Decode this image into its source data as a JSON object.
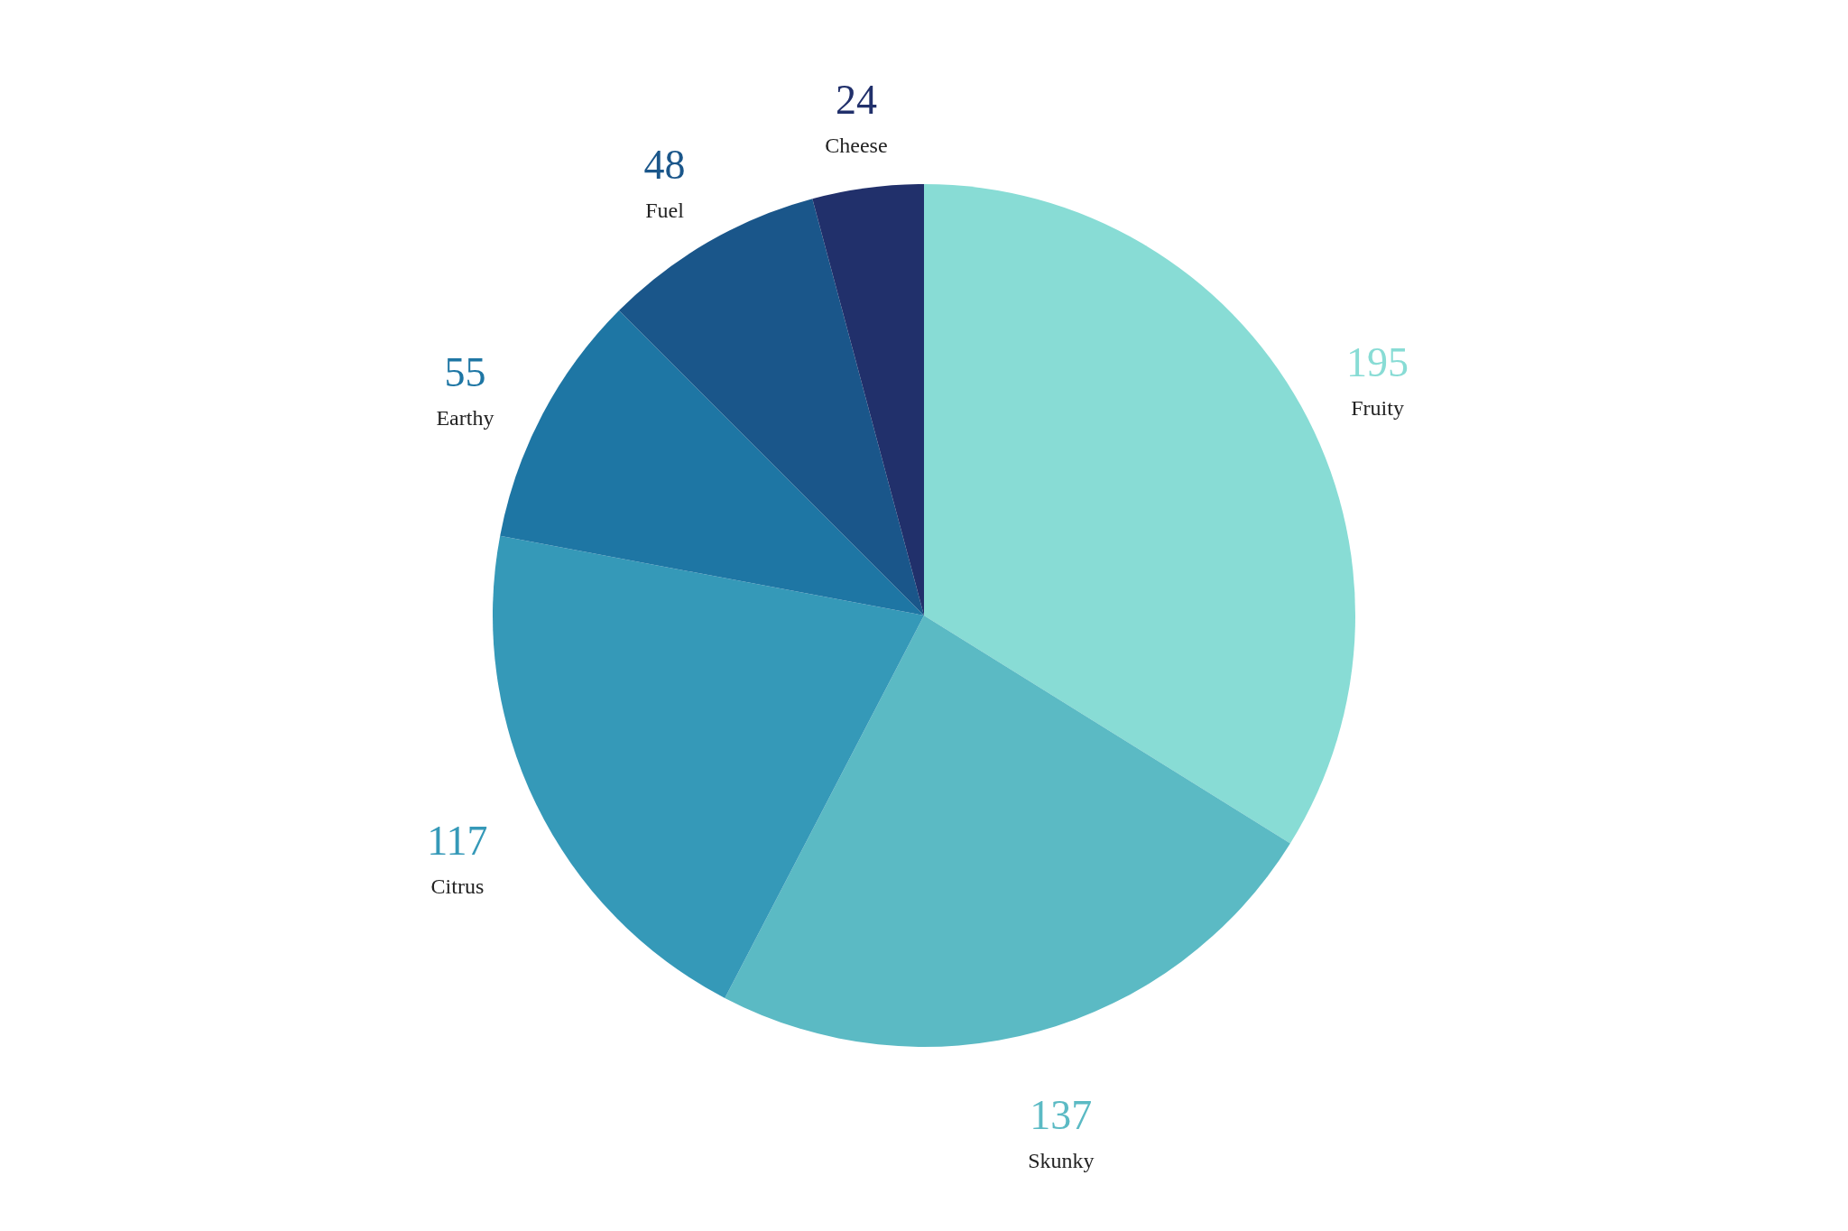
{
  "chart_data": {
    "type": "pie",
    "categories": [
      "Fruity",
      "Skunky",
      "Citrus",
      "Earthy",
      "Fuel",
      "Cheese"
    ],
    "values": [
      195,
      137,
      117,
      55,
      48,
      24
    ],
    "colors": [
      "#88dcd5",
      "#5bbac4",
      "#3599b8",
      "#1e76a4",
      "#1a568a",
      "#21306b"
    ],
    "data_labels": true
  }
}
